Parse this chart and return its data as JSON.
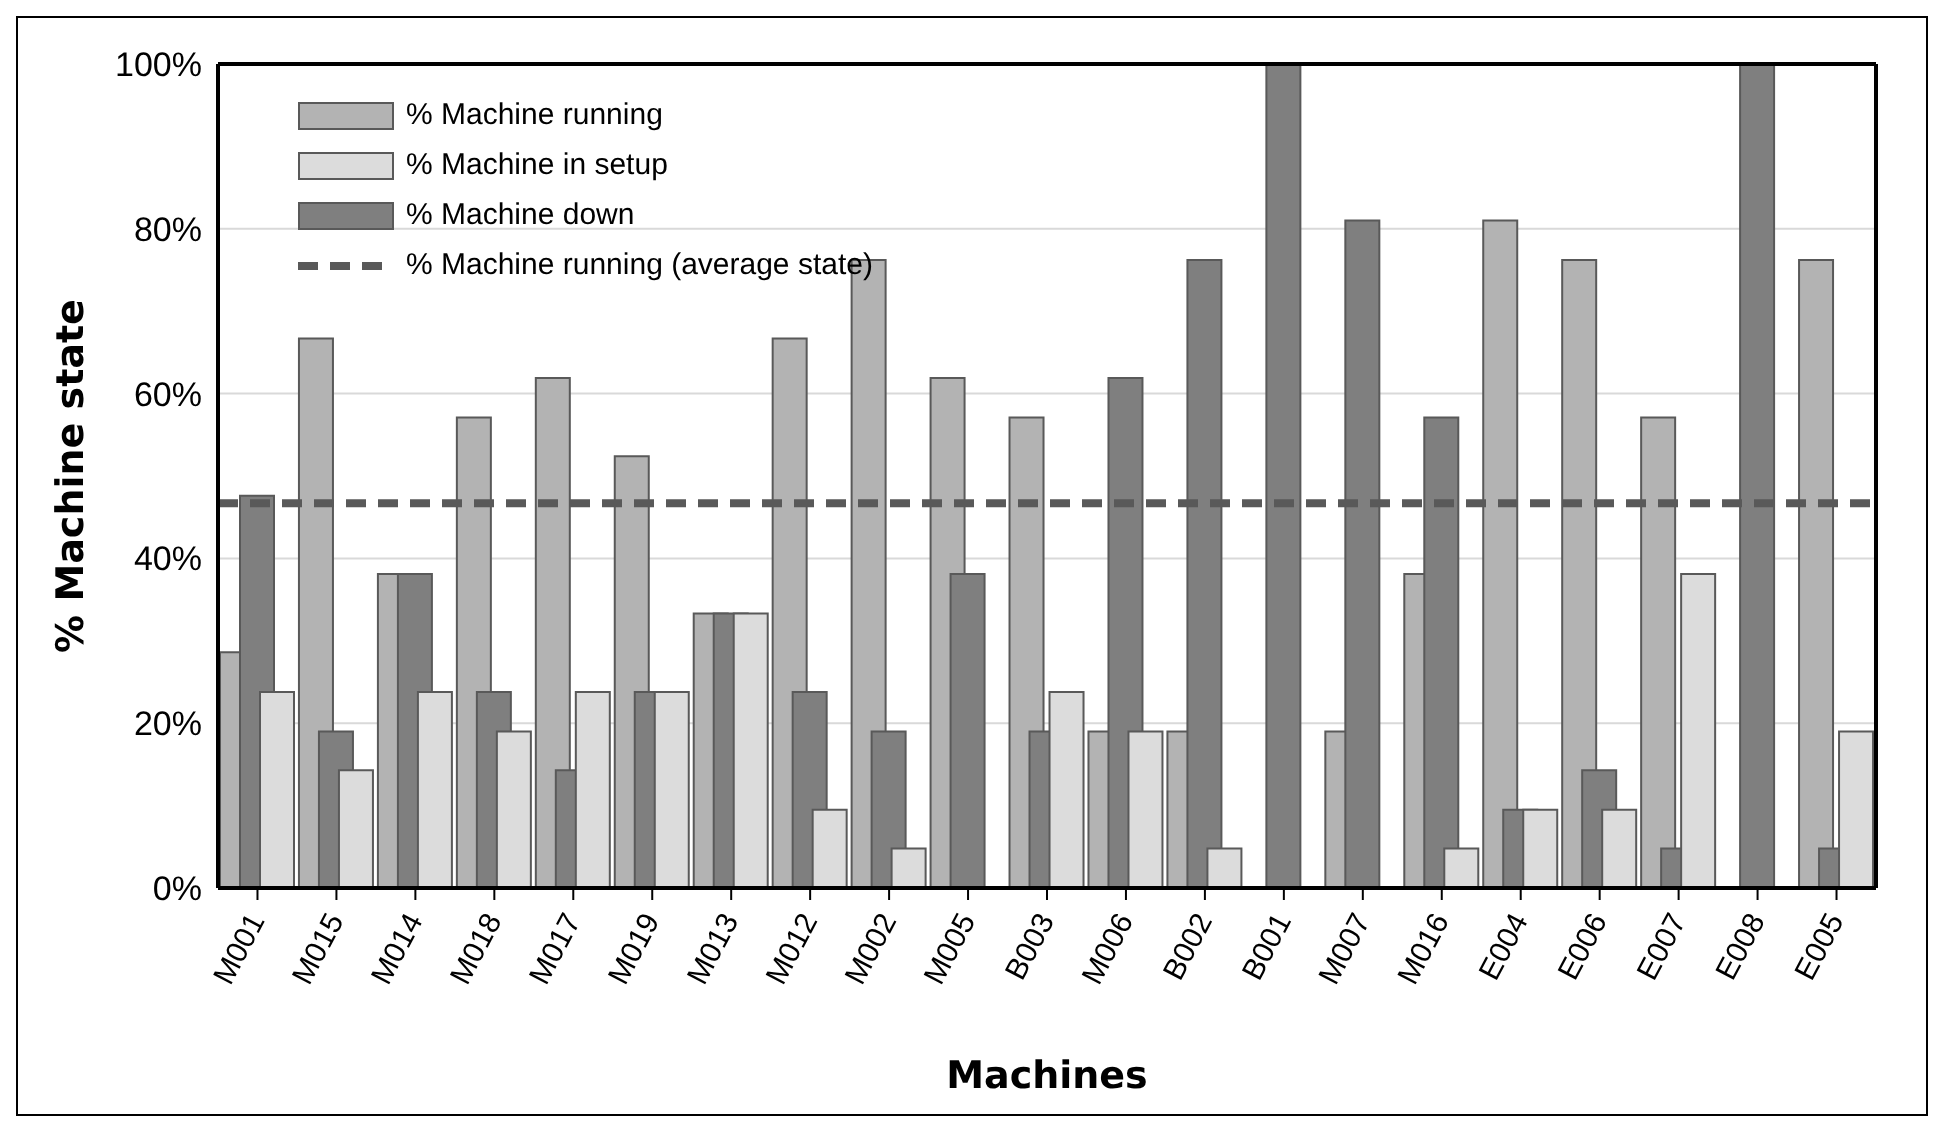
{
  "chart_data": {
    "type": "bar",
    "xlabel": "Machines",
    "ylabel": "% Machine state",
    "categories": [
      "M001",
      "M015",
      "M014",
      "M018",
      "M017",
      "M019",
      "M013",
      "M012",
      "M002",
      "M005",
      "B003",
      "M006",
      "B002",
      "B001",
      "M007",
      "M016",
      "E004",
      "E006",
      "E007",
      "E008",
      "E005"
    ],
    "series": [
      {
        "name": "% Machine running",
        "color": "#b3b3b3",
        "values": [
          28.6,
          66.7,
          38.1,
          57.1,
          61.9,
          52.4,
          33.3,
          66.7,
          76.2,
          61.9,
          57.1,
          19.0,
          19.0,
          0,
          19.0,
          38.1,
          81.0,
          76.2,
          57.1,
          0,
          76.2
        ]
      },
      {
        "name": "% Machine in setup",
        "color": "#dcdcdc",
        "values": [
          23.8,
          14.3,
          23.8,
          19.0,
          23.8,
          23.8,
          33.3,
          9.5,
          4.8,
          0,
          23.8,
          19.0,
          4.8,
          0,
          0,
          4.8,
          9.5,
          9.5,
          38.1,
          0,
          19.0
        ]
      },
      {
        "name": "% Machine down",
        "color": "#7f7f7f",
        "values": [
          47.6,
          19.0,
          38.1,
          23.8,
          14.3,
          23.8,
          33.3,
          23.8,
          19.0,
          38.1,
          19.0,
          61.9,
          76.2,
          100,
          81.0,
          57.1,
          9.5,
          14.3,
          4.8,
          100,
          4.8
        ]
      }
    ],
    "ylim": [
      0,
      100
    ],
    "yticks": [
      {
        "value": 0,
        "label": "0%"
      },
      {
        "value": 20,
        "label": "20%"
      },
      {
        "value": 40,
        "label": "40%"
      },
      {
        "value": 60,
        "label": "60%"
      },
      {
        "value": 80,
        "label": "80%"
      },
      {
        "value": 100,
        "label": "100%"
      }
    ],
    "ref_lines": [
      {
        "axis": "y",
        "value": 46.7,
        "label": "% Machine running (average state)",
        "color": "#595959",
        "line_style": "dashed"
      }
    ],
    "grid": "y",
    "legend": "top left"
  }
}
